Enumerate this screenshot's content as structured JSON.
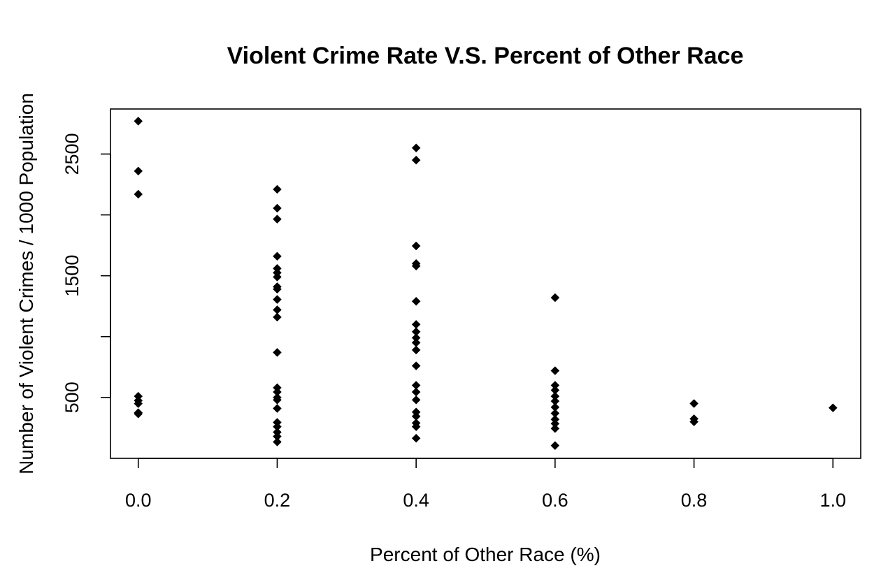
{
  "chart_data": {
    "type": "scatter",
    "title": "Violent Crime Rate V.S. Percent of Other Race",
    "xlabel": "Percent of Other Race (%)",
    "ylabel": "Number of Violent Crimes / 1000 Population",
    "xlim": [
      -0.04,
      1.04
    ],
    "ylim": [
      0,
      2870
    ],
    "xticks": [
      "0.0",
      "0.2",
      "0.4",
      "0.6",
      "0.8",
      "1.0"
    ],
    "xtick_values": [
      0,
      0.2,
      0.4,
      0.6,
      0.8,
      1.0
    ],
    "yticks": [
      "500",
      "1500",
      "2500"
    ],
    "ytick_values": [
      500,
      1500,
      2500
    ],
    "ytick_marks": [
      500,
      1000,
      1500,
      2000,
      2500
    ],
    "marker": "filled-diamond",
    "marker_color": "#000000",
    "grid": false,
    "legend": "none",
    "points": [
      {
        "x": 0.0,
        "y": 2770
      },
      {
        "x": 0.0,
        "y": 2360
      },
      {
        "x": 0.0,
        "y": 2170
      },
      {
        "x": 0.0,
        "y": 510
      },
      {
        "x": 0.0,
        "y": 475
      },
      {
        "x": 0.0,
        "y": 450
      },
      {
        "x": 0.0,
        "y": 375
      },
      {
        "x": 0.0,
        "y": 365
      },
      {
        "x": 0.2,
        "y": 2210
      },
      {
        "x": 0.2,
        "y": 2055
      },
      {
        "x": 0.2,
        "y": 1965
      },
      {
        "x": 0.2,
        "y": 1660
      },
      {
        "x": 0.2,
        "y": 1560
      },
      {
        "x": 0.2,
        "y": 1525
      },
      {
        "x": 0.2,
        "y": 1490
      },
      {
        "x": 0.2,
        "y": 1410
      },
      {
        "x": 0.2,
        "y": 1390
      },
      {
        "x": 0.2,
        "y": 1305
      },
      {
        "x": 0.2,
        "y": 1220
      },
      {
        "x": 0.2,
        "y": 1160
      },
      {
        "x": 0.2,
        "y": 870
      },
      {
        "x": 0.2,
        "y": 580
      },
      {
        "x": 0.2,
        "y": 545
      },
      {
        "x": 0.2,
        "y": 500
      },
      {
        "x": 0.2,
        "y": 480
      },
      {
        "x": 0.2,
        "y": 410
      },
      {
        "x": 0.2,
        "y": 295
      },
      {
        "x": 0.2,
        "y": 260
      },
      {
        "x": 0.2,
        "y": 215
      },
      {
        "x": 0.2,
        "y": 180
      },
      {
        "x": 0.2,
        "y": 135
      },
      {
        "x": 0.4,
        "y": 2550
      },
      {
        "x": 0.4,
        "y": 2450
      },
      {
        "x": 0.4,
        "y": 1745
      },
      {
        "x": 0.4,
        "y": 1600
      },
      {
        "x": 0.4,
        "y": 1580
      },
      {
        "x": 0.4,
        "y": 1290
      },
      {
        "x": 0.4,
        "y": 1100
      },
      {
        "x": 0.4,
        "y": 1040
      },
      {
        "x": 0.4,
        "y": 990
      },
      {
        "x": 0.4,
        "y": 950
      },
      {
        "x": 0.4,
        "y": 890
      },
      {
        "x": 0.4,
        "y": 760
      },
      {
        "x": 0.4,
        "y": 600
      },
      {
        "x": 0.4,
        "y": 545
      },
      {
        "x": 0.4,
        "y": 480
      },
      {
        "x": 0.4,
        "y": 380
      },
      {
        "x": 0.4,
        "y": 345
      },
      {
        "x": 0.4,
        "y": 290
      },
      {
        "x": 0.4,
        "y": 260
      },
      {
        "x": 0.4,
        "y": 165
      },
      {
        "x": 0.6,
        "y": 1320
      },
      {
        "x": 0.6,
        "y": 720
      },
      {
        "x": 0.6,
        "y": 600
      },
      {
        "x": 0.6,
        "y": 560
      },
      {
        "x": 0.6,
        "y": 510
      },
      {
        "x": 0.6,
        "y": 470
      },
      {
        "x": 0.6,
        "y": 420
      },
      {
        "x": 0.6,
        "y": 370
      },
      {
        "x": 0.6,
        "y": 320
      },
      {
        "x": 0.6,
        "y": 285
      },
      {
        "x": 0.6,
        "y": 245
      },
      {
        "x": 0.6,
        "y": 105
      },
      {
        "x": 0.8,
        "y": 450
      },
      {
        "x": 0.8,
        "y": 325
      },
      {
        "x": 0.8,
        "y": 300
      },
      {
        "x": 1.0,
        "y": 415
      }
    ]
  }
}
